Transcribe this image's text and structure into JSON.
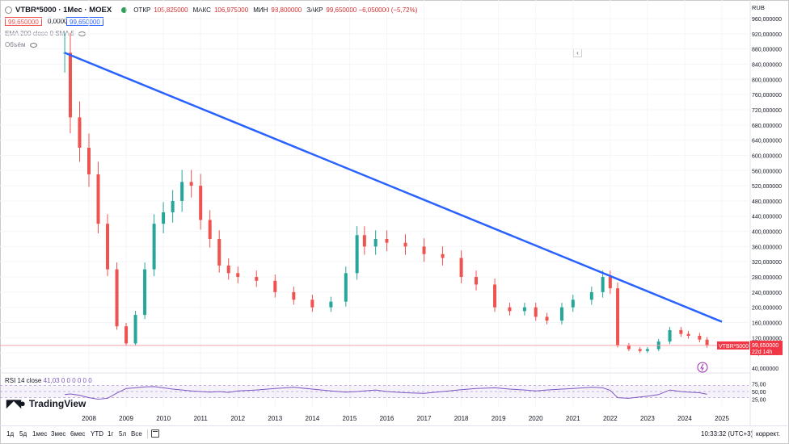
{
  "header": {
    "title": "VTBR*5000 · 1Мес · MOEX",
    "ohlc": [
      {
        "label": "ОТКР",
        "value": "105,825000"
      },
      {
        "label": "МАКС",
        "value": "106,975000"
      },
      {
        "label": "МИН",
        "value": "98,800000"
      },
      {
        "label": "ЗАКР",
        "value": "99,650000 −6,050000 (−5,72%)"
      }
    ],
    "bid": "99,650000",
    "spread": "0,000000",
    "ask": "99,650000",
    "ema_label": "EMA 200 close 0 SMA 5",
    "volume_label": "Объём"
  },
  "price_axis": {
    "currency": "RUB",
    "ticks": [
      "960,000000",
      "920,000000",
      "880,000000",
      "840,000000",
      "800,000000",
      "760,000000",
      "720,000000",
      "680,000000",
      "640,000000",
      "600,000000",
      "560,000000",
      "520,000000",
      "480,000000",
      "440,000000",
      "400,000000",
      "360,000000",
      "320,000000",
      "280,000000",
      "240,000000",
      "200,000000",
      "160,000000",
      "120,000000",
      "80,000000",
      "40,000000"
    ],
    "tick_values": [
      960,
      920,
      880,
      840,
      800,
      760,
      720,
      680,
      640,
      600,
      560,
      520,
      480,
      440,
      400,
      360,
      320,
      280,
      240,
      200,
      160,
      120,
      80,
      40
    ],
    "last_symbol": "VTBR*5000",
    "last_price": "99,650000",
    "countdown": "22d 14h"
  },
  "time_axis": {
    "labels": [
      "2008",
      "2009",
      "2010",
      "2011",
      "2012",
      "2013",
      "2014",
      "2015",
      "2016",
      "2017",
      "2018",
      "2019",
      "2020",
      "2021",
      "2022",
      "2023",
      "2024",
      "2025"
    ],
    "years": [
      2008,
      2009,
      2010,
      2011,
      2012,
      2013,
      2014,
      2015,
      2016,
      2017,
      2018,
      2019,
      2020,
      2021,
      2022,
      2023,
      2024,
      2025
    ]
  },
  "chart_data": {
    "type": "candlestick",
    "title": "VTBR*5000 · 1Мес · MOEX",
    "x": [
      2007.35,
      2007.5,
      2007.75,
      2008.0,
      2008.25,
      2008.5,
      2008.75,
      2009.0,
      2009.25,
      2009.5,
      2009.75,
      2010.0,
      2010.25,
      2010.5,
      2010.75,
      2011.0,
      2011.25,
      2011.5,
      2011.75,
      2012.0,
      2012.5,
      2013.0,
      2013.5,
      2014.0,
      2014.5,
      2014.9,
      2015.2,
      2015.4,
      2015.7,
      2016.0,
      2016.5,
      2017.0,
      2017.5,
      2018.0,
      2018.4,
      2018.9,
      2019.3,
      2019.7,
      2020.0,
      2020.3,
      2020.7,
      2021.0,
      2021.5,
      2021.8,
      2022.0,
      2022.2,
      2022.5,
      2022.8,
      2023.0,
      2023.3,
      2023.6,
      2023.9,
      2024.1,
      2024.4,
      2024.6
    ],
    "close": [
      870,
      700,
      620,
      550,
      420,
      300,
      150,
      105,
      180,
      300,
      420,
      450,
      480,
      530,
      520,
      430,
      380,
      310,
      290,
      280,
      270,
      240,
      220,
      200,
      215,
      290,
      390,
      360,
      380,
      370,
      360,
      340,
      330,
      280,
      260,
      200,
      190,
      200,
      175,
      165,
      200,
      220,
      240,
      280,
      250,
      100,
      90,
      85,
      90,
      110,
      140,
      130,
      125,
      115,
      99.65
    ],
    "ylim": [
      30,
      980
    ],
    "trendline": {
      "from": [
        2007.35,
        870
      ],
      "to": [
        2025.0,
        162
      ]
    },
    "last_close": 99.65
  },
  "rsi": {
    "label": "RSI 14 close",
    "value": "41,03",
    "extra": "0 0 0 0 0 0",
    "ticks": [
      "75,00",
      "50,00",
      "25,00"
    ],
    "tick_values": [
      75,
      50,
      25
    ],
    "values": [
      40,
      42,
      38,
      30,
      25,
      28,
      45,
      60,
      62,
      65,
      66,
      62,
      58,
      55,
      52,
      50,
      48,
      50,
      47,
      52,
      55,
      60,
      64,
      58,
      52,
      48,
      50,
      52,
      55,
      50,
      46,
      44,
      50,
      56,
      60,
      62,
      58,
      55,
      52,
      55,
      58,
      60,
      64,
      62,
      54,
      30,
      28,
      32,
      35,
      40,
      55,
      50,
      48,
      46,
      41.03
    ]
  },
  "logo": "TradingView",
  "bottom_bar": {
    "timeframes": [
      "1д",
      "5д",
      "1мес",
      "3мес",
      "6мес",
      "YTD",
      "1г",
      "5л",
      "Все"
    ],
    "clock": "10:33:32 (UTC+3)",
    "correction": "коррект."
  },
  "colors": {
    "up": "#26a69a",
    "down": "#ef5350",
    "trendline": "#2962ff",
    "rsi": "#7e57c2",
    "last_price_bg": "#f23645"
  }
}
